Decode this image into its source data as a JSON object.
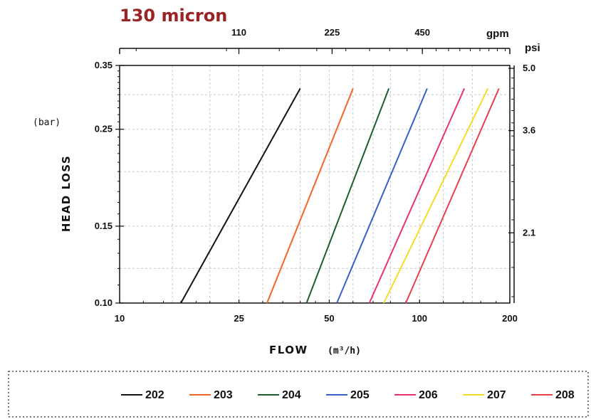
{
  "chart_data": {
    "type": "line",
    "title": "130 micron",
    "xlabel": "FLOW",
    "xlabel_unit": "(m³/h)",
    "ylabel": "HEAD LOSS",
    "ylabel_unit": "(bar)",
    "xscale": "log",
    "yscale": "log",
    "xlim": [
      10,
      200
    ],
    "ylim": [
      0.1,
      0.35
    ],
    "x_ticks": [
      "10",
      "25",
      "50",
      "100",
      "200"
    ],
    "y_ticks": [
      "0.10",
      "0.15",
      "0.25",
      "0.35"
    ],
    "top_axis": {
      "unit": "gpm",
      "ticks": [
        "110",
        "225",
        "450"
      ]
    },
    "right_axis": {
      "unit": "psi",
      "ticks": [
        "2.1",
        "3.6",
        "5.0"
      ]
    },
    "grid": true,
    "legend_position": "bottom",
    "series": [
      {
        "name": "202",
        "color": "#111111",
        "x": [
          16,
          40
        ],
        "y": [
          0.1,
          0.31
        ]
      },
      {
        "name": "203",
        "color": "#f26522",
        "x": [
          31,
          60
        ],
        "y": [
          0.1,
          0.31
        ]
      },
      {
        "name": "204",
        "color": "#1f5e2e",
        "x": [
          42,
          79
        ],
        "y": [
          0.1,
          0.31
        ]
      },
      {
        "name": "205",
        "color": "#3a5fc8",
        "x": [
          53,
          106
        ],
        "y": [
          0.1,
          0.31
        ]
      },
      {
        "name": "206",
        "color": "#e8336d",
        "x": [
          68,
          141
        ],
        "y": [
          0.1,
          0.31
        ]
      },
      {
        "name": "207",
        "color": "#f2de26",
        "x": [
          76,
          169
        ],
        "y": [
          0.1,
          0.31
        ]
      },
      {
        "name": "208",
        "color": "#e8404a",
        "x": [
          90,
          184
        ],
        "y": [
          0.1,
          0.31
        ]
      }
    ]
  }
}
